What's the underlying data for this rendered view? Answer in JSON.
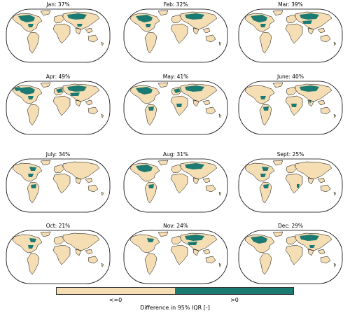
{
  "colors": {
    "le_zero": "#f5deb3",
    "gt_zero": "#1b7a72",
    "ocean": "#ffffff",
    "coast": "#000000"
  },
  "panels": [
    {
      "title": "Jan: 37%",
      "regions": [
        "canada",
        "siberia",
        "tibet",
        "us_east"
      ]
    },
    {
      "title": "Feb: 32%",
      "regions": [
        "canada",
        "siberia",
        "us_east"
      ]
    },
    {
      "title": "Mar: 39%",
      "regions": [
        "canada",
        "siberia",
        "central_asia",
        "us_east"
      ]
    },
    {
      "title": "Apr: 49%",
      "regions": [
        "canada",
        "alaska",
        "siberia",
        "europe",
        "central_asia",
        "us_east"
      ]
    },
    {
      "title": "May: 41%",
      "regions": [
        "canada",
        "siberia",
        "europe",
        "amazon",
        "central_africa"
      ]
    },
    {
      "title": "June: 40%",
      "regions": [
        "siberia",
        "us_east",
        "amazon",
        "central_africa",
        "india"
      ]
    },
    {
      "title": "July: 34%",
      "regions": [
        "canada_east",
        "amazon",
        "us_east"
      ]
    },
    {
      "title": "Aug: 31%",
      "regions": [
        "canada",
        "amazon",
        "siberia"
      ]
    },
    {
      "title": "Sept: 25%",
      "regions": [
        "canada_east",
        "amazon",
        "east_africa",
        "us_east"
      ]
    },
    {
      "title": "Oct: 21%",
      "regions": [
        "canada_east",
        "us_east"
      ]
    },
    {
      "title": "Nov: 24%",
      "regions": [
        "canada_east",
        "central_asia",
        "siberia"
      ]
    },
    {
      "title": "Dec: 29%",
      "regions": [
        "canada",
        "siberia",
        "tibet"
      ]
    }
  ],
  "legend": {
    "labels": [
      "<=0",
      ">0"
    ],
    "title": "Difference in 95% IQR [-]"
  }
}
